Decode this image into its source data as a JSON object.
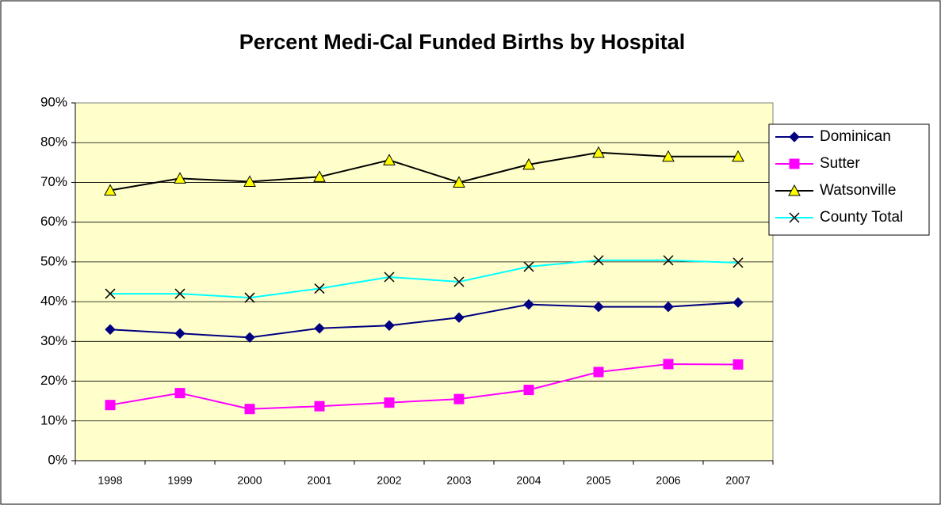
{
  "chart_data": {
    "type": "line",
    "title": "Percent Medi-Cal Funded Births by Hospital",
    "categories": [
      "1998",
      "1999",
      "2000",
      "2001",
      "2002",
      "2003",
      "2004",
      "2005",
      "2006",
      "2007"
    ],
    "series": [
      {
        "name": "Dominican",
        "color": "#000080",
        "marker": "diamond",
        "marker_color": "#000080",
        "values": [
          33,
          32,
          31,
          33.3,
          34,
          36,
          39.3,
          38.7,
          38.7,
          39.8
        ]
      },
      {
        "name": "Sutter",
        "color": "#ff00ff",
        "marker": "square",
        "marker_color": "#ff00ff",
        "values": [
          14,
          17,
          13,
          13.7,
          14.6,
          15.5,
          17.8,
          22.3,
          24.3,
          24.2
        ]
      },
      {
        "name": "Watsonville",
        "color": "#000000",
        "marker": "triangle",
        "marker_color": "#ffff00",
        "values": [
          68,
          71,
          70.2,
          71.4,
          75.6,
          70,
          74.5,
          77.5,
          76.5,
          76.5
        ]
      },
      {
        "name": "County Total",
        "color": "#00ffff",
        "marker": "x",
        "marker_color": "#000000",
        "values": [
          42,
          42,
          41,
          43.3,
          46.2,
          45,
          48.8,
          50.4,
          50.4,
          49.8
        ]
      }
    ],
    "ylim": [
      0,
      90
    ],
    "yticks": [
      {
        "value": 0,
        "label": "0%"
      },
      {
        "value": 10,
        "label": "10%"
      },
      {
        "value": 20,
        "label": "20%"
      },
      {
        "value": 30,
        "label": "30%"
      },
      {
        "value": 40,
        "label": "40%"
      },
      {
        "value": 50,
        "label": "50%"
      },
      {
        "value": 60,
        "label": "60%"
      },
      {
        "value": 70,
        "label": "70%"
      },
      {
        "value": 80,
        "label": "80%"
      },
      {
        "value": 90,
        "label": "90%"
      }
    ],
    "grid": true,
    "plot_background": "#ffffcc",
    "legend": "right"
  }
}
